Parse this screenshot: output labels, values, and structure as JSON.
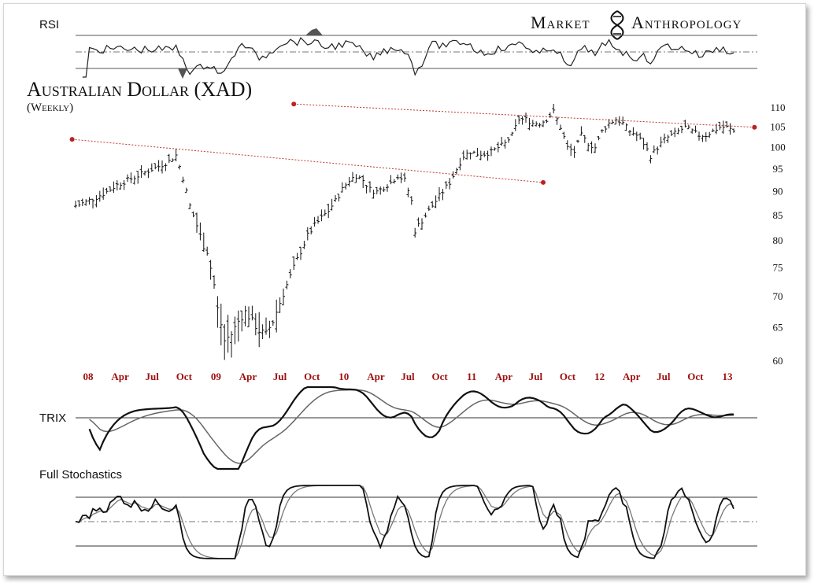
{
  "brand": {
    "left": "Market",
    "right": "Anthropology"
  },
  "panels": {
    "rsi": "RSI",
    "trix": "TRIX",
    "stoch": "Full Stochastics"
  },
  "colors": {
    "price": "#111111",
    "trendline": "#c0392b",
    "axis_labels": "#a01010",
    "rsi_fill": "#555555"
  },
  "chart_data": {
    "type": "bar",
    "title": "Australian Dollar (XAD)",
    "subtitle": "(Weekly)",
    "y_ticks": [
      110,
      105,
      100,
      95,
      90,
      85,
      80,
      75,
      70,
      65,
      60
    ],
    "ylim": [
      58,
      112
    ],
    "y_scale": "log",
    "x_ticks": [
      "08",
      "Apr",
      "Jul",
      "Oct",
      "09",
      "Apr",
      "Jul",
      "Oct",
      "10",
      "Apr",
      "Jul",
      "Oct",
      "11",
      "Apr",
      "Jul",
      "Oct",
      "12",
      "Apr",
      "Jul",
      "Oct",
      "13"
    ],
    "weekly_close_path": [
      [
        0,
        87.0
      ],
      [
        3,
        87.8
      ],
      [
        6,
        88.8
      ],
      [
        9,
        90.0
      ],
      [
        12,
        91.5
      ],
      [
        15,
        92.5
      ],
      [
        18,
        93.5
      ],
      [
        21,
        94.6
      ],
      [
        24,
        95.6
      ],
      [
        27,
        96.8
      ],
      [
        29,
        98.2
      ],
      [
        31,
        93
      ],
      [
        33,
        87
      ],
      [
        35,
        83
      ],
      [
        37,
        79
      ],
      [
        38,
        78
      ],
      [
        40,
        72
      ],
      [
        41,
        68
      ],
      [
        43,
        63
      ],
      [
        45,
        64
      ],
      [
        47,
        66
      ],
      [
        49,
        67.5
      ],
      [
        51,
        66
      ],
      [
        53,
        64.5
      ],
      [
        55,
        64
      ],
      [
        57,
        66
      ],
      [
        59,
        69
      ],
      [
        61,
        72
      ],
      [
        63,
        75
      ],
      [
        65,
        78
      ],
      [
        67,
        81
      ],
      [
        69,
        83
      ],
      [
        71,
        84.5
      ],
      [
        73,
        86
      ],
      [
        75,
        88
      ],
      [
        77,
        90.5
      ],
      [
        79,
        92.5
      ],
      [
        81,
        93.5
      ],
      [
        83,
        92.5
      ],
      [
        85,
        90.5
      ],
      [
        87,
        90
      ],
      [
        89,
        91
      ],
      [
        91,
        92
      ],
      [
        93,
        93.5
      ],
      [
        95,
        92.5
      ],
      [
        97,
        88
      ],
      [
        98,
        82
      ],
      [
        100,
        84
      ],
      [
        102,
        86
      ],
      [
        104,
        88
      ],
      [
        106,
        90
      ],
      [
        108,
        92
      ],
      [
        110,
        95
      ],
      [
        112,
        98
      ],
      [
        114,
        99
      ],
      [
        116,
        98.5
      ],
      [
        118,
        98.5
      ],
      [
        120,
        99
      ],
      [
        122,
        100
      ],
      [
        124,
        101
      ],
      [
        126,
        103
      ],
      [
        128,
        107
      ],
      [
        130,
        107
      ],
      [
        132,
        106
      ],
      [
        134,
        106
      ],
      [
        136,
        107
      ],
      [
        138,
        109
      ],
      [
        140,
        105
      ],
      [
        142,
        100
      ],
      [
        144,
        99
      ],
      [
        146,
        103
      ],
      [
        148,
        101
      ],
      [
        150,
        100
      ],
      [
        152,
        104
      ],
      [
        154,
        106
      ],
      [
        156,
        107
      ],
      [
        158,
        106
      ],
      [
        160,
        104
      ],
      [
        162,
        103
      ],
      [
        164,
        101
      ],
      [
        166,
        98
      ],
      [
        168,
        100
      ],
      [
        170,
        102
      ],
      [
        172,
        103
      ],
      [
        174,
        104
      ],
      [
        176,
        105
      ],
      [
        178,
        104
      ],
      [
        180,
        103
      ],
      [
        182,
        103
      ],
      [
        184,
        104
      ],
      [
        186,
        105
      ],
      [
        188,
        105
      ],
      [
        190,
        104
      ]
    ],
    "weeks_total": 190,
    "trendlines": [
      {
        "from": [
          -1,
          102
        ],
        "to": [
          135,
          92
        ]
      },
      {
        "from": [
          63,
          111
        ],
        "to": [
          196,
          105
        ]
      }
    ]
  }
}
